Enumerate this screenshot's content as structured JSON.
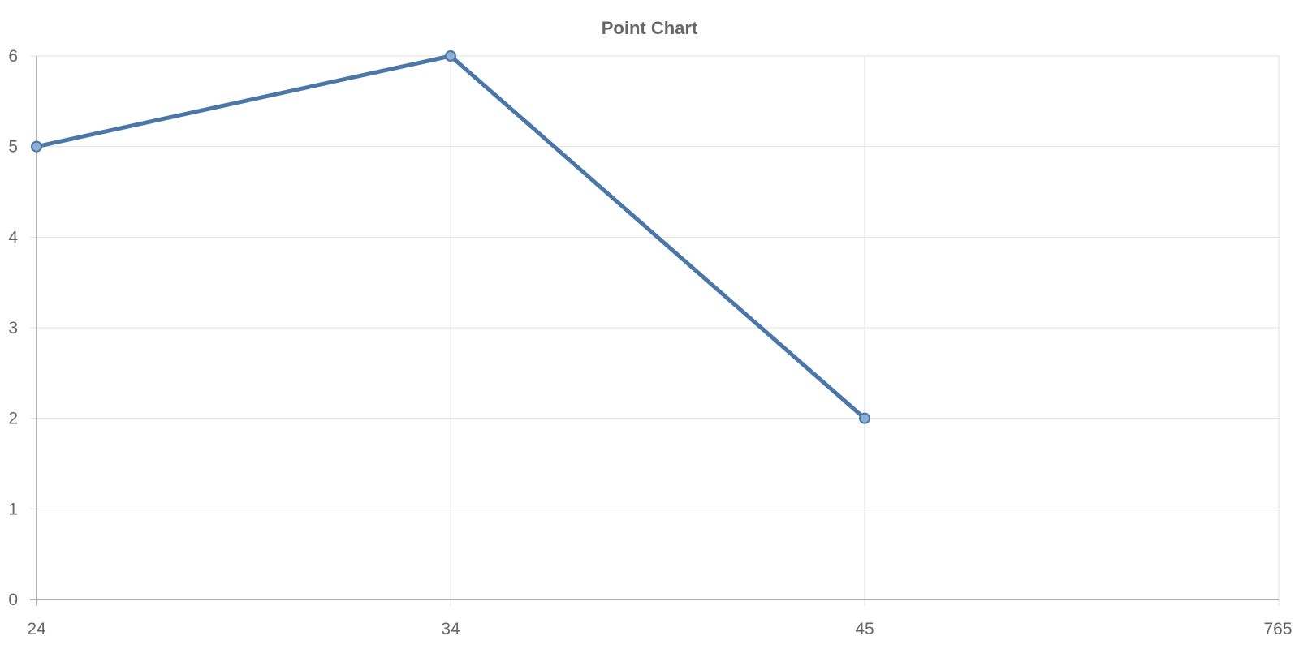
{
  "chart_data": {
    "type": "line",
    "title": "Point Chart",
    "categories": [
      "24",
      "34",
      "45",
      "765"
    ],
    "series": [
      {
        "values": [
          5,
          6,
          2,
          null
        ],
        "color": "#4a76a8",
        "point_fill": "#8eb0d6"
      }
    ],
    "y_ticks": [
      "0",
      "1",
      "2",
      "3",
      "4",
      "5",
      "6"
    ],
    "ylim": [
      0,
      6
    ],
    "grid": true,
    "xlabel": "",
    "ylabel": ""
  }
}
